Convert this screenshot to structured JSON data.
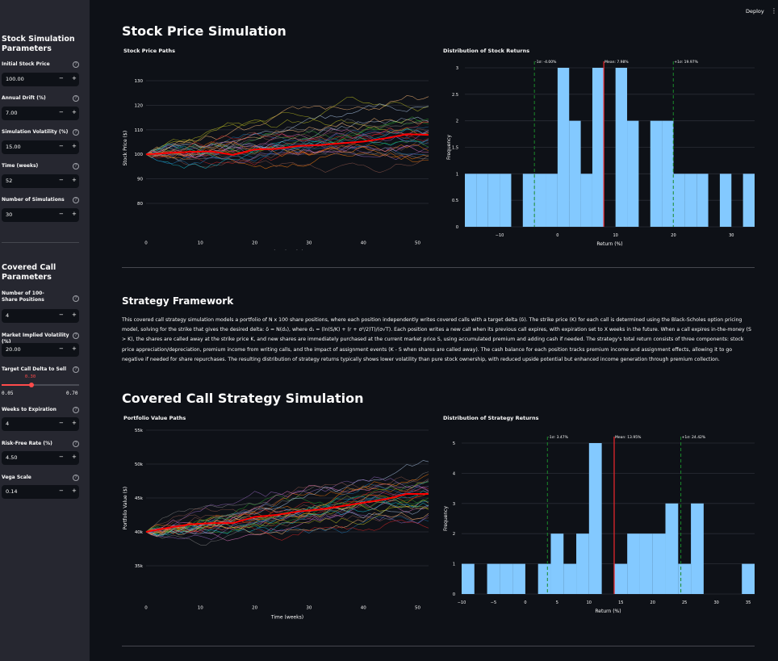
{
  "topbar": {
    "deploy_label": "Deploy",
    "menu_icon": "vertical-ellipsis-icon"
  },
  "sidebar": {
    "stock_section": {
      "title": "Stock Simulation Parameters",
      "fields": [
        {
          "label": "Initial Stock Price",
          "value": "100.00"
        },
        {
          "label": "Annual Drift (%)",
          "value": "7.00"
        },
        {
          "label": "Simulation Volatility (%)",
          "value": "15.00"
        },
        {
          "label": "Time (weeks)",
          "value": "52"
        },
        {
          "label": "Number of Simulations",
          "value": "30"
        }
      ]
    },
    "call_section": {
      "title": "Covered Call Parameters",
      "fields": [
        {
          "label": "Number of 100-Share Positions",
          "value": "4"
        },
        {
          "label": "Market Implied Volatility (%)",
          "value": "20.00"
        }
      ],
      "slider": {
        "label": "Target Call Delta to Sell",
        "value": 0.3,
        "value_label": "0.30",
        "min": 0.05,
        "min_label": "0.05",
        "max": 0.7,
        "max_label": "0.70"
      },
      "fields2": [
        {
          "label": "Weeks to Expiration",
          "value": "4"
        },
        {
          "label": "Risk-Free Rate (%)",
          "value": "4.50"
        },
        {
          "label": "Vega Scale",
          "value": "0.14"
        }
      ]
    },
    "minus": "−",
    "plus": "+",
    "help": "?"
  },
  "main": {
    "stock_title": "Stock Price Simulation",
    "framework_title": "Strategy Framework",
    "framework_text": "This covered call strategy simulation models a portfolio of N x 100 share positions, where each position independently writes covered calls with a target delta (δ). The strike price (K) for each call is determined using the Black-Scholes option pricing model, solving for the strike that gives the desired delta: δ = N(d₁), where d₁ = (ln(S/K) + (r + σ²/2)T)/(σ√T). Each position writes a new call when its previous call expires, with expiration set to X weeks in the future. When a call expires in-the-money (S > K), the shares are called away at the strike price K, and new shares are immediately purchased at the current market price S, using accumulated premium and adding cash if needed. The strategy's total return consists of three components: stock price appreciation/depreciation, premium income from writing calls, and the impact of assignment events (K - S when shares are called away). The cash balance for each position tracks premium income and assignment effects, allowing it to go negative if needed for share repurchases. The resulting distribution of strategy returns typically shows lower volatility than pure stock ownership, with reduced upside potential but enhanced income generation through premium collection.",
    "covered_title": "Covered Call Strategy Simulation"
  },
  "chart_data": [
    {
      "id": "stock_paths",
      "type": "line",
      "title": "Stock Price Paths",
      "xlabel": "Time (weeks)",
      "ylabel": "Stock Price ($)",
      "xlim": [
        0,
        52
      ],
      "ylim": [
        70,
        135
      ],
      "xticks": [
        0,
        10,
        20,
        30,
        40,
        50
      ],
      "yticks": [
        80,
        90,
        100,
        110,
        120,
        130
      ],
      "ytick_labels": [
        "80",
        "90",
        "100",
        "110",
        "120",
        "130"
      ],
      "num_paths": 30,
      "start_value": 100,
      "mean_path": {
        "name": "Mean",
        "color": "#ff0000",
        "x": [
          0,
          4,
          8,
          12,
          16,
          20,
          24,
          28,
          32,
          36,
          40,
          44,
          48,
          52
        ],
        "y": [
          100,
          100.5,
          101,
          101.2,
          99.8,
          102,
          102.2,
          103.4,
          103.8,
          104.5,
          105.2,
          106.5,
          108.2,
          107.9
        ]
      },
      "grid": true
    },
    {
      "id": "stock_hist",
      "type": "bar",
      "title": "Distribution of Stock Returns",
      "xlabel": "Return (%)",
      "ylabel": "Frequency",
      "xlim": [
        -16,
        34
      ],
      "ylim": [
        0,
        3
      ],
      "xticks": [
        -10,
        0,
        10,
        20,
        30
      ],
      "yticks": [
        0,
        0.5,
        1,
        1.5,
        2,
        2.5,
        3
      ],
      "bin_width": 2,
      "bins": [
        [
          -16,
          1
        ],
        [
          -14,
          1
        ],
        [
          -12,
          1
        ],
        [
          -10,
          1
        ],
        [
          -8,
          0
        ],
        [
          -6,
          1
        ],
        [
          -4,
          1
        ],
        [
          -2,
          1
        ],
        [
          0,
          3
        ],
        [
          2,
          2
        ],
        [
          4,
          1
        ],
        [
          6,
          3
        ],
        [
          8,
          0
        ],
        [
          10,
          3
        ],
        [
          12,
          2
        ],
        [
          14,
          0
        ],
        [
          16,
          2
        ],
        [
          18,
          2
        ],
        [
          20,
          1
        ],
        [
          22,
          1
        ],
        [
          24,
          1
        ],
        [
          26,
          0
        ],
        [
          28,
          1
        ],
        [
          30,
          0
        ],
        [
          32,
          1
        ]
      ],
      "bar_color": "#83c9ff",
      "mean": 7.98,
      "mean_label": "Mean: 7.98%",
      "minus_sigma": -4.0,
      "minus_sigma_label": "-1σ: -4.00%",
      "plus_sigma": 19.97,
      "plus_sigma_label": "+1σ: 19.97%",
      "grid": true
    },
    {
      "id": "portfolio_paths",
      "type": "line",
      "title": "Portfolio Value Paths",
      "xlabel": "Time (weeks)",
      "ylabel": "Portfolio Value ($)",
      "xlim": [
        0,
        52
      ],
      "ylim": [
        31000,
        56000
      ],
      "xticks": [
        0,
        10,
        20,
        30,
        40,
        50
      ],
      "yticks": [
        35000,
        40000,
        45000,
        50000,
        55000
      ],
      "ytick_labels": [
        "35k",
        "40k",
        "45k",
        "50k",
        "55k"
      ],
      "num_paths": 30,
      "start_value": 40000,
      "mean_path": {
        "name": "Mean",
        "color": "#ff0000",
        "x": [
          0,
          4,
          8,
          12,
          16,
          20,
          24,
          28,
          32,
          36,
          40,
          44,
          48,
          52
        ],
        "y": [
          40000,
          40600,
          41100,
          41300,
          41300,
          42200,
          42500,
          43000,
          43300,
          43800,
          44300,
          44800,
          45600,
          45600
        ]
      },
      "grid": true
    },
    {
      "id": "strategy_hist",
      "type": "bar",
      "title": "Distribution of Strategy Returns",
      "xlabel": "Return (%)",
      "ylabel": "Frequency",
      "xlim": [
        -10,
        36
      ],
      "ylim": [
        0,
        5
      ],
      "xticks": [
        -10,
        -5,
        0,
        5,
        10,
        15,
        20,
        25,
        30,
        35
      ],
      "yticks": [
        0,
        1,
        2,
        3,
        4,
        5
      ],
      "bin_width": 2,
      "bins": [
        [
          -10,
          1
        ],
        [
          -8,
          0
        ],
        [
          -6,
          1
        ],
        [
          -4,
          1
        ],
        [
          -2,
          1
        ],
        [
          0,
          0
        ],
        [
          2,
          1
        ],
        [
          4,
          2
        ],
        [
          6,
          1
        ],
        [
          8,
          2
        ],
        [
          10,
          5
        ],
        [
          12,
          0
        ],
        [
          14,
          1
        ],
        [
          16,
          2
        ],
        [
          18,
          2
        ],
        [
          20,
          2
        ],
        [
          22,
          3
        ],
        [
          24,
          1
        ],
        [
          26,
          3
        ],
        [
          28,
          0
        ],
        [
          30,
          0
        ],
        [
          32,
          0
        ],
        [
          34,
          1
        ]
      ],
      "bar_color": "#83c9ff",
      "mean": 13.95,
      "mean_label": "Mean: 13.95%",
      "minus_sigma": 3.47,
      "minus_sigma_label": "-1σ: 3.47%",
      "plus_sigma": 24.42,
      "plus_sigma_label": "+1σ: 24.42%",
      "grid": true
    }
  ]
}
